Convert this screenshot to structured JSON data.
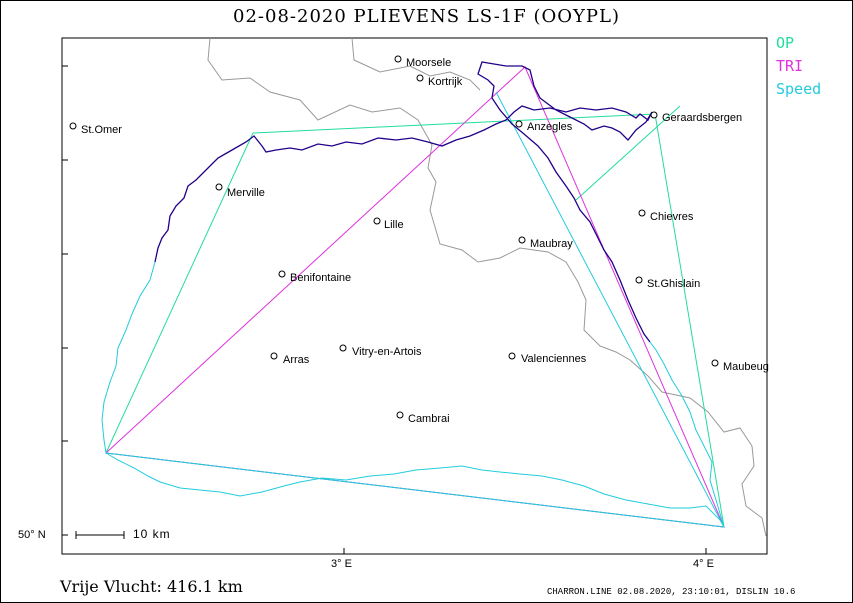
{
  "title": "02-08-2020   PLIEVENS   LS-1F (OOYPL)",
  "legend": [
    {
      "label": "OP",
      "color": "#22dd99"
    },
    {
      "label": "TRI",
      "color": "#dd33dd"
    },
    {
      "label": "Speed",
      "color": "#22ccdd"
    }
  ],
  "towns": [
    {
      "name": "Moorsele"
    },
    {
      "name": "Kortrijk"
    },
    {
      "name": "St.Omer"
    },
    {
      "name": "Geraardsbergen"
    },
    {
      "name": "Anzegles"
    },
    {
      "name": "Merville"
    },
    {
      "name": "Chievres"
    },
    {
      "name": "Lille"
    },
    {
      "name": "Maubray"
    },
    {
      "name": "Benifontaine"
    },
    {
      "name": "St.Ghislain"
    },
    {
      "name": "Arras"
    },
    {
      "name": "Vitry-en-Artois"
    },
    {
      "name": "Valenciennes"
    },
    {
      "name": "Maubeug"
    },
    {
      "name": "Cambrai"
    }
  ],
  "axes": {
    "lat_label": "50° N",
    "lon_ticks": [
      "3° E",
      "4° E"
    ]
  },
  "scale_label": "10  km",
  "footer": {
    "distance": "Vrije Vlucht:  416.1 km",
    "credit": "CHARRON.LINE 02.08.2020, 23:10:01, DISLIN 10.6"
  },
  "colors": {
    "track": "#22008a",
    "track_south": "#22ccdd",
    "border": "#999999"
  }
}
